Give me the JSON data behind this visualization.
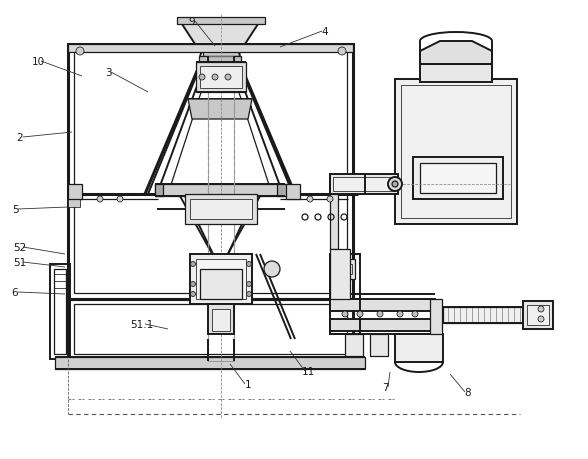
{
  "bg_color": "#ffffff",
  "lc": "#1a1a1a",
  "fig_width": 5.88,
  "fig_height": 4.6,
  "dpi": 100,
  "labels": [
    [
      "10",
      38,
      62,
      82,
      77
    ],
    [
      "3",
      108,
      73,
      148,
      93
    ],
    [
      "9",
      192,
      22,
      215,
      47
    ],
    [
      "4",
      325,
      32,
      280,
      48
    ],
    [
      "2",
      20,
      138,
      72,
      133
    ],
    [
      "5",
      15,
      210,
      68,
      208
    ],
    [
      "52",
      20,
      248,
      65,
      255
    ],
    [
      "51",
      20,
      263,
      65,
      268
    ],
    [
      "6",
      15,
      293,
      65,
      295
    ],
    [
      "51.1",
      142,
      325,
      168,
      330
    ],
    [
      "1",
      248,
      385,
      230,
      365
    ],
    [
      "11",
      308,
      372,
      290,
      352
    ],
    [
      "7",
      385,
      388,
      390,
      373
    ],
    [
      "8",
      468,
      393,
      450,
      375
    ]
  ]
}
